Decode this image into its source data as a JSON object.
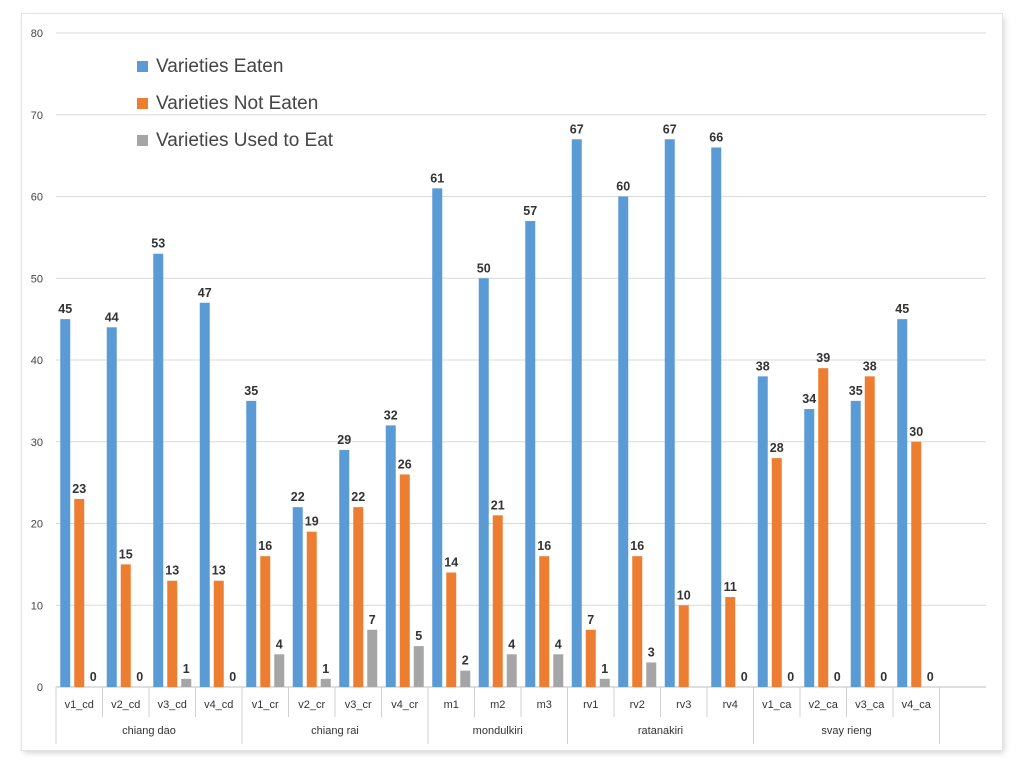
{
  "chart_data": {
    "type": "bar",
    "title": "",
    "xlabel": "",
    "ylabel": "",
    "ylim": [
      0,
      80
    ],
    "yticks": [
      0,
      10,
      20,
      30,
      40,
      50,
      60,
      70,
      80
    ],
    "grid": true,
    "legend_position": "top-left",
    "categories": [
      "v1_cd",
      "v2_cd",
      "v3_cd",
      "v4_cd",
      "v1_cr",
      "v2_cr",
      "v3_cr",
      "v4_cr",
      "m1",
      "m2",
      "m3",
      "rv1",
      "rv2",
      "rv3",
      "rv4",
      "v1_ca",
      "v2_ca",
      "v3_ca",
      "v4_ca"
    ],
    "groups": [
      {
        "label": "chiang dao",
        "categories": [
          "v1_cd",
          "v2_cd",
          "v3_cd",
          "v4_cd"
        ]
      },
      {
        "label": "chiang rai",
        "categories": [
          "v1_cr",
          "v2_cr",
          "v3_cr",
          "v4_cr"
        ]
      },
      {
        "label": "mondulkiri",
        "categories": [
          "m1",
          "m2",
          "m3"
        ]
      },
      {
        "label": "ratanakiri",
        "categories": [
          "rv1",
          "rv2",
          "rv3",
          "rv4"
        ]
      },
      {
        "label": "svay rieng",
        "categories": [
          "v1_ca",
          "v2_ca",
          "v3_ca",
          "v4_ca"
        ]
      }
    ],
    "series": [
      {
        "name": "Varieties Eaten",
        "color": "#5b9bd5",
        "values": [
          45,
          44,
          53,
          47,
          35,
          22,
          29,
          32,
          61,
          50,
          57,
          67,
          60,
          67,
          66,
          38,
          34,
          35,
          45
        ],
        "labels": [
          "45",
          "44",
          "53",
          "47",
          "35",
          "22",
          "29",
          "32",
          "61",
          "50",
          "57",
          "67",
          "60",
          "67",
          "66",
          "38",
          "34",
          "35",
          "45"
        ]
      },
      {
        "name": "Varieties Not Eaten",
        "color": "#ed7d31",
        "values": [
          23,
          15,
          13,
          13,
          16,
          19,
          22,
          26,
          14,
          21,
          16,
          7,
          16,
          10,
          11,
          28,
          39,
          38,
          30
        ],
        "labels": [
          "23",
          "15",
          "13",
          "13",
          "16",
          "19",
          "22",
          "26",
          "14",
          "21",
          "16",
          "7",
          "16",
          "10",
          "11",
          "28",
          "39",
          "38",
          "30"
        ]
      },
      {
        "name": "Varieties Used to Eat",
        "color": "#a5a5a5",
        "values": [
          0,
          0,
          1,
          0,
          4,
          1,
          7,
          5,
          2,
          4,
          4,
          1,
          3,
          null,
          0,
          0,
          0,
          0,
          0
        ],
        "labels": [
          "0",
          "0",
          "1",
          "0",
          "4",
          "1",
          "7",
          "5",
          "2",
          "4",
          "4",
          "1",
          "3",
          "",
          "0",
          "0",
          "0",
          "0",
          "0"
        ]
      }
    ]
  }
}
